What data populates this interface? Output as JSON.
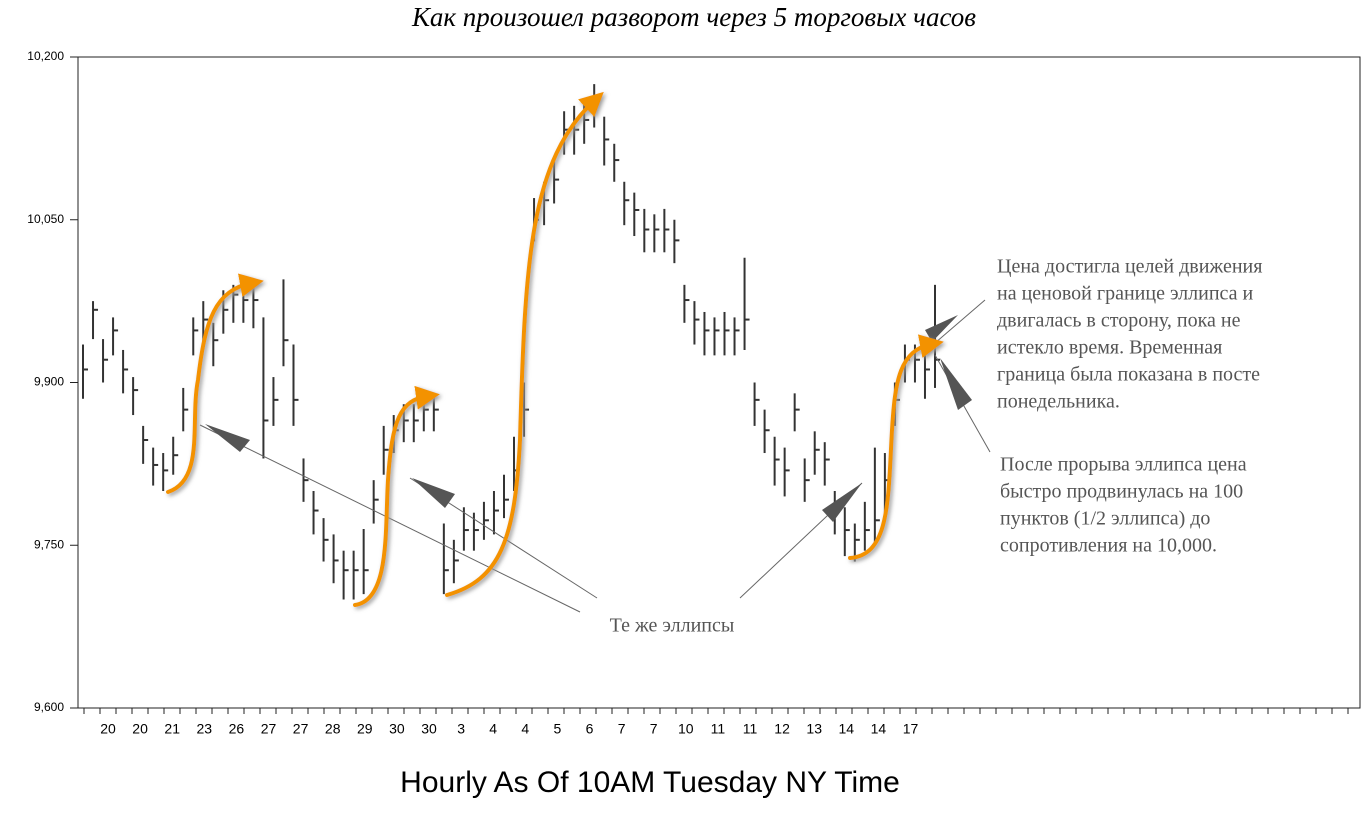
{
  "chart_data": {
    "type": "ohlc",
    "title": "Как произошел разворот через 5 торговых часов",
    "x_axis_title": "Hourly As Of 10AM Tuesday NY Time",
    "date_labels": [
      "20",
      "20",
      "21",
      "23",
      "26",
      "27",
      "27",
      "28",
      "29",
      "30",
      "30",
      "3",
      "4",
      "4",
      "5",
      "6",
      "7",
      "7",
      "10",
      "11",
      "11",
      "12",
      "13",
      "14",
      "14",
      "17"
    ],
    "high": [
      9935,
      9975,
      9940,
      9960,
      9930,
      9905,
      9860,
      9840,
      9835,
      9850,
      9895,
      9960,
      9975,
      9955,
      9985,
      9990,
      9990,
      9995,
      9960,
      9905,
      9995,
      9935,
      9830,
      9800,
      9775,
      9760,
      9745,
      9745,
      9765,
      9810,
      9860,
      9870,
      9880,
      9880,
      9890,
      9890,
      9770,
      9755,
      9785,
      9780,
      9790,
      9800,
      9815,
      9850,
      9900,
      10070,
      10085,
      10105,
      10150,
      10155,
      10160,
      10175,
      10145,
      10120,
      10085,
      10075,
      10060,
      10055,
      10060,
      10050,
      9990,
      9975,
      9965,
      9960,
      9965,
      9960,
      10015,
      9900,
      9875,
      9850,
      9840,
      9890,
      9830,
      9855,
      9845,
      9800,
      9785,
      9770,
      9790,
      9840,
      9835,
      9900,
      9935,
      9935,
      9930,
      9990
    ],
    "low": [
      9885,
      9940,
      9900,
      9925,
      9890,
      9870,
      9825,
      9805,
      9800,
      9815,
      9855,
      9925,
      9935,
      9915,
      9945,
      9955,
      9955,
      9950,
      9830,
      9860,
      9915,
      9860,
      9790,
      9760,
      9735,
      9715,
      9700,
      9700,
      9705,
      9770,
      9815,
      9835,
      9845,
      9845,
      9855,
      9855,
      9705,
      9715,
      9745,
      9745,
      9755,
      9760,
      9775,
      9800,
      9850,
      10030,
      10045,
      10065,
      10110,
      10110,
      10120,
      10135,
      10100,
      10085,
      10045,
      10035,
      10020,
      10020,
      10020,
      10010,
      9955,
      9935,
      9925,
      9925,
      9925,
      9925,
      9930,
      9860,
      9835,
      9805,
      9795,
      9855,
      9790,
      9815,
      9805,
      9760,
      9740,
      9735,
      9745,
      9750,
      9780,
      9860,
      9900,
      9900,
      9885,
      9895
    ],
    "close": [
      9912,
      9967,
      9921,
      9948,
      9912,
      9893,
      9847,
      9824,
      9819,
      9833,
      9875,
      9948,
      9958,
      9939,
      9967,
      9981,
      9976,
      9976,
      9865,
      9884,
      9939,
      9884,
      9810,
      9782,
      9755,
      9736,
      9727,
      9727,
      9727,
      9792,
      9838,
      9856,
      9865,
      9865,
      9875,
      9875,
      9727,
      9736,
      9764,
      9764,
      9773,
      9782,
      9792,
      9819,
      9875,
      10050,
      10068,
      10087,
      10133,
      10133,
      10142,
      10160,
      10124,
      10105,
      10068,
      10059,
      10041,
      10041,
      10041,
      10031,
      9976,
      9958,
      9948,
      9948,
      9948,
      9948,
      9958,
      9884,
      9856,
      9829,
      9819,
      9875,
      9810,
      9838,
      9829,
      9782,
      9764,
      9755,
      9764,
      9773,
      9810,
      9884,
      9921,
      9921,
      9912,
      9921
    ],
    "color": "#333333",
    "ylim": [
      9600,
      10200
    ],
    "yticks": [
      {
        "value": 9600,
        "label": "9,600"
      },
      {
        "value": 9750,
        "label": "9,750"
      },
      {
        "value": 9900,
        "label": "9,900"
      },
      {
        "value": 10050,
        "label": "10,050"
      },
      {
        "value": 10200,
        "label": "10,200"
      }
    ],
    "annotations": {
      "target": [
        "Цена достигла целей движения",
        "на ценовой границе эллипса и",
        "двигалась в сторону, пока не",
        "истекло время. Временная",
        "граница была показана в посте",
        "понедельника."
      ],
      "breakout": [
        "После прорыва эллипса цена",
        "быстро продвинулась на 100",
        "пунктов (1/2 эллипса) до",
        "сопротивления на 10,000."
      ],
      "same": "Те же эллипсы"
    }
  }
}
